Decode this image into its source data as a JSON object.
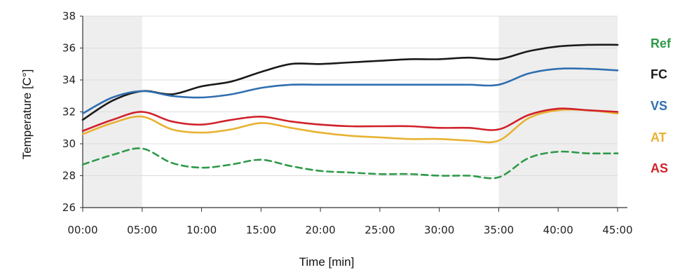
{
  "chart_data": {
    "type": "line",
    "xlabel": "Time [min]",
    "ylabel": "Temperature [C°]",
    "xlim": [
      0,
      45
    ],
    "ylim": [
      26,
      38
    ],
    "x_ticks": [
      "00:00",
      "05:00",
      "10:00",
      "15:00",
      "20:00",
      "25:00",
      "30:00",
      "35:00",
      "40:00",
      "45:00"
    ],
    "y_ticks": [
      "26",
      "28",
      "30",
      "32",
      "34",
      "36",
      "38"
    ],
    "shaded_regions": [
      [
        0,
        5
      ],
      [
        35,
        45
      ]
    ],
    "grid": "horizontal",
    "legend_position": "right",
    "x": [
      0,
      2.5,
      5,
      7.5,
      10,
      12.5,
      15,
      17.5,
      20,
      22.5,
      25,
      27.5,
      30,
      32.5,
      35,
      37.5,
      40,
      42.5,
      45
    ],
    "series": [
      {
        "name": "Ref",
        "color": "#2e9a4a",
        "dashed": true,
        "values": [
          28.7,
          29.3,
          29.7,
          28.8,
          28.5,
          28.7,
          29.0,
          28.6,
          28.3,
          28.2,
          28.1,
          28.1,
          28.0,
          28.0,
          27.9,
          29.1,
          29.5,
          29.4,
          29.4
        ]
      },
      {
        "name": "FC",
        "color": "#1a1a1a",
        "dashed": false,
        "values": [
          31.5,
          32.7,
          33.3,
          33.1,
          33.6,
          33.9,
          34.5,
          35.0,
          35.0,
          35.1,
          35.2,
          35.3,
          35.3,
          35.4,
          35.3,
          35.8,
          36.1,
          36.2,
          36.2
        ]
      },
      {
        "name": "VS",
        "color": "#2f6fb0",
        "dashed": false,
        "values": [
          31.9,
          32.9,
          33.3,
          33.0,
          32.9,
          33.1,
          33.5,
          33.7,
          33.7,
          33.7,
          33.7,
          33.7,
          33.7,
          33.7,
          33.7,
          34.4,
          34.7,
          34.7,
          34.6
        ]
      },
      {
        "name": "AT",
        "color": "#e8b232",
        "dashed": false,
        "values": [
          30.6,
          31.3,
          31.7,
          30.9,
          30.7,
          30.9,
          31.3,
          31.0,
          30.7,
          30.5,
          30.4,
          30.3,
          30.3,
          30.2,
          30.2,
          31.6,
          32.1,
          32.1,
          31.9
        ]
      },
      {
        "name": "AS",
        "color": "#d0222b",
        "dashed": false,
        "values": [
          30.8,
          31.5,
          32.0,
          31.4,
          31.2,
          31.5,
          31.7,
          31.4,
          31.2,
          31.1,
          31.1,
          31.1,
          31.0,
          31.0,
          30.9,
          31.8,
          32.2,
          32.1,
          32.0
        ]
      }
    ]
  }
}
